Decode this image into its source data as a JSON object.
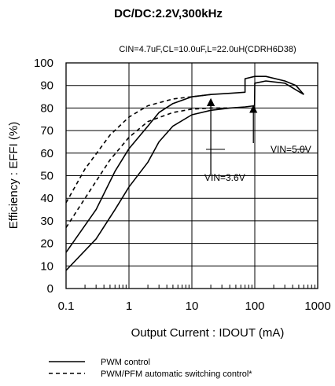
{
  "chart_data": {
    "type": "line",
    "title": "DC/DC:2.2V,300kHz",
    "subtitle": "CIN=4.7uF,CL=10.0uF,L=22.0uH(CDRH6D38)",
    "xlabel": "Output Current : IDOUT (mA)",
    "ylabel": "Efficiency : EFFI (%)",
    "x_scale": "log",
    "xlim": [
      0.1,
      1000
    ],
    "ylim": [
      0,
      100
    ],
    "x_ticks": [
      "0.1",
      "1",
      "10",
      "100",
      "1000"
    ],
    "y_ticks": [
      "0",
      "10",
      "20",
      "30",
      "40",
      "50",
      "60",
      "70",
      "80",
      "90",
      "100"
    ],
    "grid": true,
    "series": [
      {
        "name": "PWM control",
        "style": "solid",
        "x": [
          0.1,
          0.3,
          0.6,
          1,
          2,
          3,
          5,
          10,
          20,
          40,
          70,
          99,
          100,
          150,
          300,
          600
        ],
        "y": [
          8,
          22,
          35,
          45,
          56,
          65,
          72,
          77,
          79,
          80,
          80.5,
          81,
          91,
          92,
          91,
          86
        ]
      },
      {
        "name": "PWM control",
        "style": "solid",
        "x": [
          0.1,
          0.3,
          0.6,
          1,
          2,
          3,
          5,
          10,
          20,
          40,
          70,
          70,
          100,
          150,
          300,
          450,
          600
        ],
        "y": [
          16,
          35,
          52,
          62,
          72,
          78,
          82,
          85,
          86,
          86.5,
          87,
          93,
          94,
          94,
          92,
          90,
          86
        ]
      },
      {
        "name": "PWM/PFM automatic switching control*",
        "style": "dashed",
        "x": [
          0.1,
          0.2,
          0.5,
          1,
          2,
          5,
          10,
          20,
          40
        ],
        "y": [
          27,
          40,
          57,
          67,
          74,
          78,
          79.5,
          80,
          80
        ]
      },
      {
        "name": "PWM/PFM automatic switching control*",
        "style": "dashed",
        "x": [
          0.1,
          0.2,
          0.5,
          1,
          2,
          5,
          10,
          20
        ],
        "y": [
          38,
          53,
          68,
          76,
          81,
          84,
          85,
          86
        ]
      }
    ],
    "annotations": [
      {
        "text": "VIN=5.0V",
        "x": 20,
        "y": 84
      },
      {
        "text": "VIN=3.6V",
        "x": 95,
        "y": 75
      }
    ],
    "legend": [
      {
        "label": "PWM control",
        "style": "solid"
      },
      {
        "label": "PWM/PFM automatic switching control*",
        "style": "dashed"
      }
    ],
    "legend_position": "bottom"
  }
}
